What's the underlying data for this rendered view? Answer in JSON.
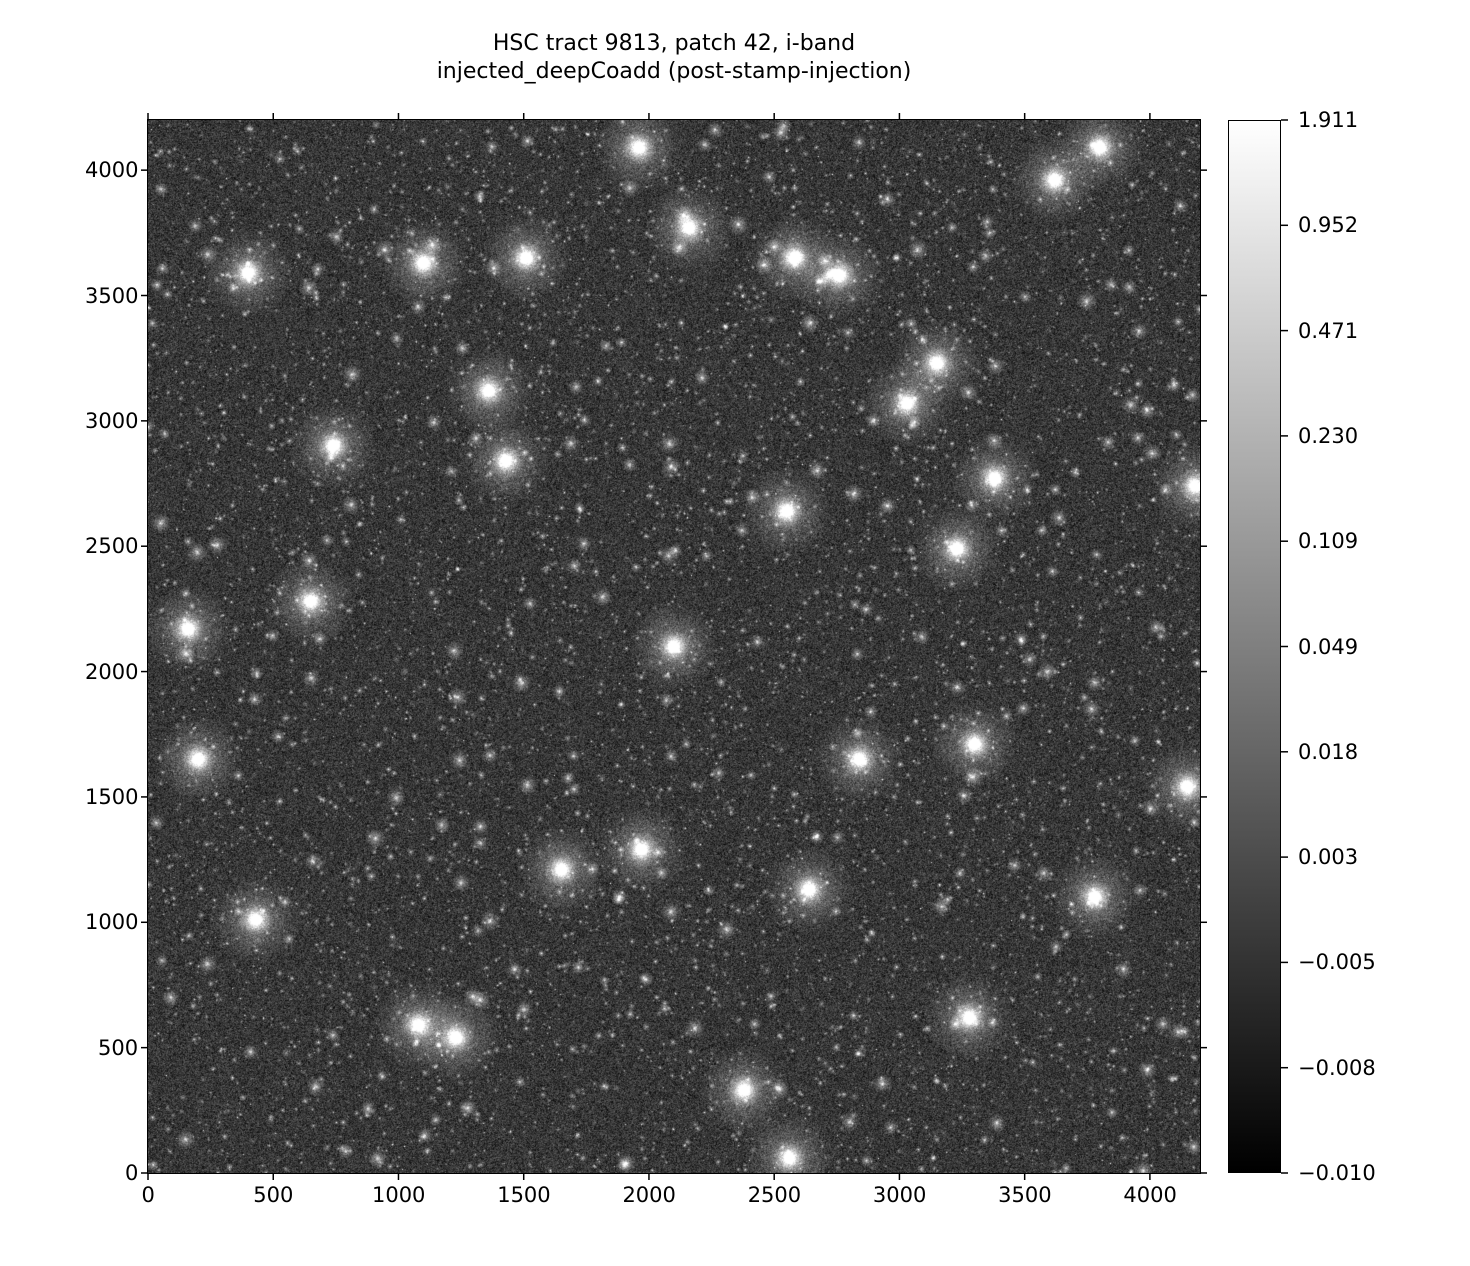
{
  "chart_data": {
    "type": "heatmap",
    "title": [
      "HSC tract 9813, patch 42, i-band",
      "injected_deepCoadd (post-stamp-injection)"
    ],
    "xlabel": "",
    "ylabel": "",
    "xlim": [
      0,
      4200
    ],
    "ylim": [
      0,
      4200
    ],
    "x_ticks": [
      "0",
      "500",
      "1000",
      "1500",
      "2000",
      "2500",
      "3000",
      "3500",
      "4000"
    ],
    "y_ticks": [
      "0",
      "500",
      "1000",
      "1500",
      "2000",
      "2500",
      "3000",
      "3500",
      "4000"
    ],
    "colormap": "gray",
    "colorbar": {
      "ticks": [
        "1.911",
        "0.952",
        "0.471",
        "0.230",
        "0.109",
        "0.049",
        "0.018",
        "0.003",
        "−0.005",
        "−0.008",
        "−0.010"
      ],
      "vmin": -0.01,
      "vmax": 1.911,
      "stretch": "asinh-like (evenly spaced nonlinear ticks)"
    },
    "bright_sources": [
      {
        "x": 740,
        "y": 2900
      },
      {
        "x": 1230,
        "y": 540
      },
      {
        "x": 2640,
        "y": 1130
      },
      {
        "x": 3780,
        "y": 1100
      },
      {
        "x": 3380,
        "y": 2770
      },
      {
        "x": 1960,
        "y": 4090
      },
      {
        "x": 400,
        "y": 3590
      },
      {
        "x": 1100,
        "y": 3630
      },
      {
        "x": 1510,
        "y": 3650
      },
      {
        "x": 2550,
        "y": 2640
      },
      {
        "x": 2100,
        "y": 2100
      },
      {
        "x": 650,
        "y": 2280
      },
      {
        "x": 1650,
        "y": 1210
      },
      {
        "x": 430,
        "y": 1010
      },
      {
        "x": 2840,
        "y": 1650
      },
      {
        "x": 3300,
        "y": 1710
      },
      {
        "x": 1970,
        "y": 1290
      },
      {
        "x": 2380,
        "y": 330
      },
      {
        "x": 1360,
        "y": 3120
      },
      {
        "x": 3150,
        "y": 3230
      },
      {
        "x": 3620,
        "y": 3960
      },
      {
        "x": 4180,
        "y": 2740
      },
      {
        "x": 4150,
        "y": 1540
      },
      {
        "x": 3230,
        "y": 2490
      },
      {
        "x": 2760,
        "y": 3580
      },
      {
        "x": 2580,
        "y": 3650
      },
      {
        "x": 2160,
        "y": 3770
      },
      {
        "x": 160,
        "y": 2170
      },
      {
        "x": 200,
        "y": 1650
      },
      {
        "x": 1080,
        "y": 590
      },
      {
        "x": 3030,
        "y": 3070
      },
      {
        "x": 1430,
        "y": 2840
      },
      {
        "x": 3800,
        "y": 4090
      },
      {
        "x": 3280,
        "y": 620
      },
      {
        "x": 2560,
        "y": 60
      }
    ]
  }
}
